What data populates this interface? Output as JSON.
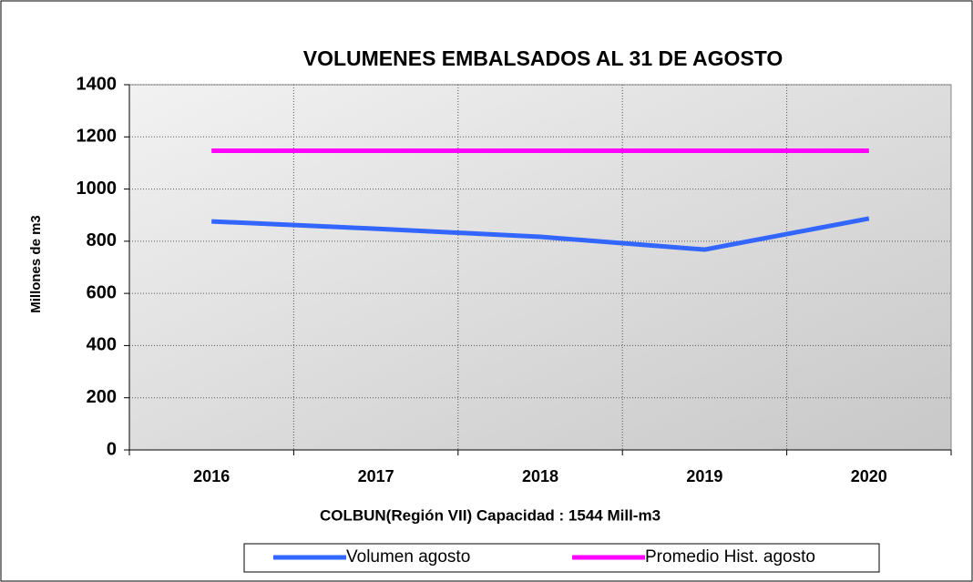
{
  "chart_data": {
    "type": "line",
    "title": "VOLUMENES EMBALSADOS  AL 31 DE AGOSTO",
    "ylabel": "Millones de m3",
    "xlabel": "COLBUN(Región VII)  Capacidad : 1544 Mill-m3",
    "categories": [
      "2016",
      "2017",
      "2018",
      "2019",
      "2020"
    ],
    "series": [
      {
        "name": "Volumen agosto",
        "color": "#3366ff",
        "values": [
          876,
          848,
          817,
          768,
          887
        ]
      },
      {
        "name": "Promedio Hist. agosto",
        "color": "#ff00ff",
        "values": [
          1147,
          1147,
          1147,
          1147,
          1147
        ]
      }
    ],
    "ylim": [
      0,
      1400
    ],
    "yticks": [
      0,
      200,
      400,
      600,
      800,
      1000,
      1200,
      1400
    ],
    "grid": true,
    "legend": "bottom"
  }
}
